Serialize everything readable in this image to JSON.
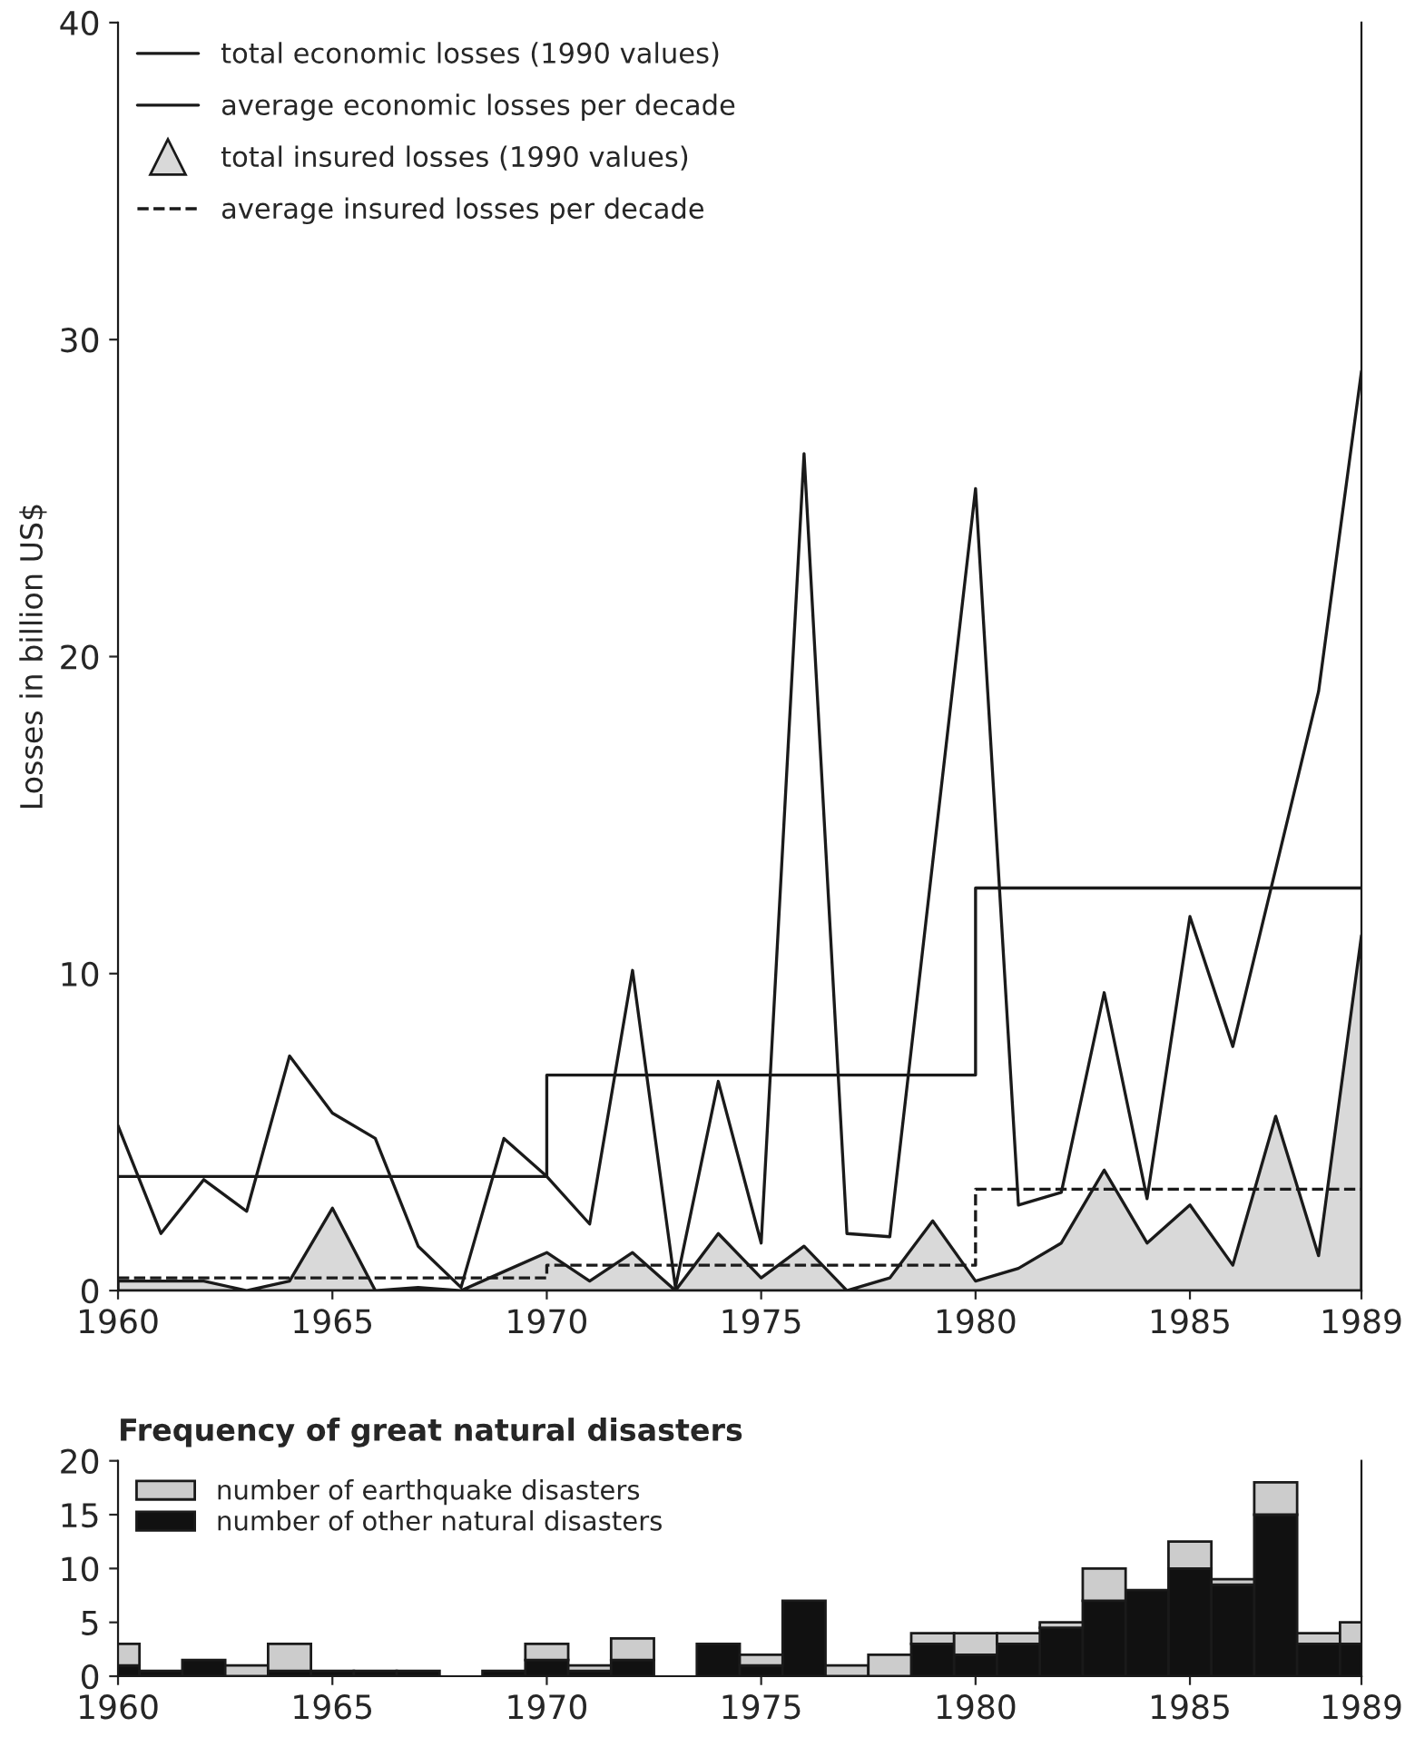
{
  "chart_data": [
    {
      "type": "line",
      "ylabel": "Losses in billion US$",
      "x": [
        1960,
        1961,
        1962,
        1963,
        1964,
        1965,
        1966,
        1967,
        1968,
        1969,
        1970,
        1971,
        1972,
        1973,
        1974,
        1975,
        1976,
        1977,
        1978,
        1979,
        1980,
        1981,
        1982,
        1983,
        1984,
        1985,
        1986,
        1987,
        1988,
        1989
      ],
      "series": [
        {
          "name": "total economic losses (1990 values)",
          "type": "line",
          "color": "#1a1a1a",
          "line_style": "solid",
          "values": [
            5.2,
            1.8,
            3.5,
            2.5,
            7.4,
            5.6,
            4.8,
            1.4,
            0.1,
            4.8,
            3.6,
            2.1,
            10.1,
            0.1,
            6.6,
            1.5,
            26.4,
            1.8,
            1.7,
            13.5,
            25.3,
            2.7,
            3.1,
            9.4,
            2.9,
            11.8,
            7.7,
            13.3,
            18.9,
            29
          ]
        },
        {
          "name": "average economic losses per decade",
          "type": "step",
          "color": "#1a1a1a",
          "line_style": "solid",
          "x": [
            1960,
            1970,
            1980,
            1989
          ],
          "values": [
            3.6,
            6.8,
            12.7,
            12.7
          ]
        },
        {
          "name": "total insured losses (1990 values)",
          "type": "area",
          "color": "#d9d9d9",
          "values": [
            0.3,
            0.3,
            0.3,
            0,
            0.3,
            2.6,
            0,
            0.1,
            0,
            0.6,
            1.2,
            0.3,
            1.2,
            0,
            1.8,
            0.4,
            1.4,
            0,
            0.4,
            2.2,
            0.3,
            0.7,
            1.5,
            3.8,
            1.5,
            2.7,
            0.8,
            5.5,
            1.1,
            11.2
          ]
        },
        {
          "name": "average insured losses per decade",
          "type": "step",
          "color": "#1a1a1a",
          "line_style": "dashed",
          "x": [
            1960,
            1970,
            1980,
            1989
          ],
          "values": [
            0.4,
            0.8,
            3.2,
            3.2
          ]
        }
      ],
      "xlim": [
        1960,
        1989
      ],
      "ylim": [
        0,
        40
      ],
      "xticks": [
        1960,
        1965,
        1970,
        1975,
        1980,
        1985,
        1989
      ],
      "yticks": [
        0,
        10,
        20,
        30,
        40
      ],
      "grid": false,
      "legend": "top left"
    },
    {
      "type": "bar",
      "title": "Frequency of great natural disasters",
      "stacked": true,
      "x": [
        1960,
        1961,
        1962,
        1963,
        1964,
        1965,
        1966,
        1967,
        1968,
        1969,
        1970,
        1971,
        1972,
        1973,
        1974,
        1975,
        1976,
        1977,
        1978,
        1979,
        1980,
        1981,
        1982,
        1983,
        1984,
        1985,
        1986,
        1987,
        1988,
        1989
      ],
      "series": [
        {
          "name": "number of other natural disasters",
          "color": "#111111",
          "values": [
            1,
            0.5,
            1.5,
            0,
            0.5,
            0.5,
            0.5,
            0.5,
            0,
            0.5,
            1.5,
            0.5,
            1.5,
            0,
            3,
            1,
            7,
            0,
            0,
            3,
            2,
            3,
            4.5,
            7,
            8,
            10,
            8.5,
            15,
            3,
            3
          ]
        },
        {
          "name": "number of earthquake disasters",
          "color": "#cccccc",
          "values": [
            2,
            0,
            0,
            1,
            2.5,
            0,
            0,
            0,
            0,
            0,
            1.5,
            0.5,
            2,
            0,
            0,
            1,
            0,
            1,
            2,
            1,
            2,
            1,
            0.5,
            3,
            0,
            2.5,
            0.5,
            3,
            1,
            2
          ]
        }
      ],
      "xlim": [
        1960,
        1989
      ],
      "ylim": [
        0,
        20
      ],
      "xticks": [
        1960,
        1965,
        1970,
        1975,
        1980,
        1985,
        1989
      ],
      "yticks": [
        0,
        5,
        10,
        15,
        20
      ],
      "grid": false,
      "legend": "top left"
    }
  ]
}
